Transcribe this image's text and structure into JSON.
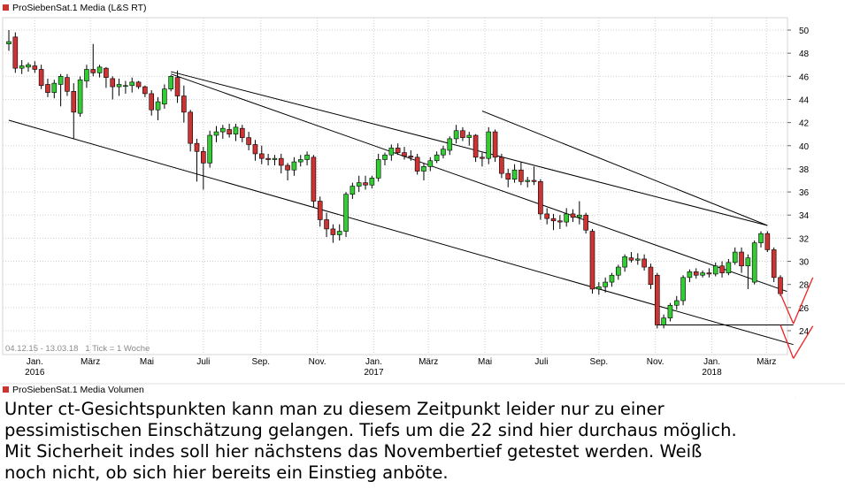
{
  "chart_data": {
    "type": "candlestick",
    "title": "ProSiebenSat.1 Media (L&S RT)",
    "volume_title": "ProSiebenSat.1 Media Volumen",
    "info": "04.12.15 - 13.03.18   1 Tick = 1 Woche",
    "ylim": [
      22.5,
      51
    ],
    "yticks": [
      24,
      26,
      28,
      30,
      32,
      34,
      36,
      38,
      40,
      42,
      44,
      46,
      48,
      50
    ],
    "x_ticks": [
      {
        "label": "Jan.",
        "sub": "2016",
        "date": "2016-01-01"
      },
      {
        "label": "März",
        "sub": "",
        "date": "2016-03-01"
      },
      {
        "label": "Mai",
        "sub": "",
        "date": "2016-05-01"
      },
      {
        "label": "Juli",
        "sub": "",
        "date": "2016-07-01"
      },
      {
        "label": "Sep.",
        "sub": "",
        "date": "2016-09-01"
      },
      {
        "label": "Nov.",
        "sub": "",
        "date": "2016-11-01"
      },
      {
        "label": "Jan.",
        "sub": "2017",
        "date": "2017-01-01"
      },
      {
        "label": "März",
        "sub": "",
        "date": "2017-03-01"
      },
      {
        "label": "Mai",
        "sub": "",
        "date": "2017-05-01"
      },
      {
        "label": "Juli",
        "sub": "",
        "date": "2017-07-01"
      },
      {
        "label": "Sep.",
        "sub": "",
        "date": "2017-09-01"
      },
      {
        "label": "Nov.",
        "sub": "",
        "date": "2017-11-01"
      },
      {
        "label": "Jan.",
        "sub": "2018",
        "date": "2018-01-01"
      },
      {
        "label": "März",
        "sub": "",
        "date": "2018-03-01"
      }
    ],
    "candles": [
      {
        "date": "2015-12-04",
        "o": 48.8,
        "h": 50.0,
        "l": 48.2,
        "c": 49.0
      },
      {
        "date": "2015-12-11",
        "o": 49.4,
        "h": 49.8,
        "l": 46.3,
        "c": 46.7
      },
      {
        "date": "2015-12-18",
        "o": 46.7,
        "h": 47.4,
        "l": 46.2,
        "c": 46.9
      },
      {
        "date": "2015-12-25",
        "o": 46.8,
        "h": 47.2,
        "l": 46.4,
        "c": 47.0
      },
      {
        "date": "2016-01-01",
        "o": 46.9,
        "h": 47.3,
        "l": 46.3,
        "c": 46.6
      },
      {
        "date": "2016-01-08",
        "o": 46.6,
        "h": 47.0,
        "l": 44.9,
        "c": 45.2
      },
      {
        "date": "2016-01-15",
        "o": 45.3,
        "h": 45.8,
        "l": 44.2,
        "c": 44.6
      },
      {
        "date": "2016-01-22",
        "o": 44.6,
        "h": 45.7,
        "l": 44.1,
        "c": 45.4
      },
      {
        "date": "2016-01-29",
        "o": 45.3,
        "h": 46.2,
        "l": 43.4,
        "c": 46.0
      },
      {
        "date": "2016-02-05",
        "o": 45.9,
        "h": 46.2,
        "l": 44.3,
        "c": 44.7
      },
      {
        "date": "2016-02-12",
        "o": 44.7,
        "h": 45.4,
        "l": 40.6,
        "c": 42.9
      },
      {
        "date": "2016-02-19",
        "o": 42.8,
        "h": 46.0,
        "l": 42.5,
        "c": 45.7
      },
      {
        "date": "2016-02-26",
        "o": 45.6,
        "h": 47.0,
        "l": 45.0,
        "c": 46.6
      },
      {
        "date": "2016-03-04",
        "o": 46.6,
        "h": 48.8,
        "l": 46.0,
        "c": 46.3
      },
      {
        "date": "2016-03-11",
        "o": 46.3,
        "h": 47.0,
        "l": 45.9,
        "c": 46.8
      },
      {
        "date": "2016-03-18",
        "o": 46.7,
        "h": 46.8,
        "l": 45.0,
        "c": 45.9
      },
      {
        "date": "2016-03-25",
        "o": 45.8,
        "h": 46.0,
        "l": 44.0,
        "c": 45.1
      },
      {
        "date": "2016-04-01",
        "o": 45.1,
        "h": 45.8,
        "l": 44.3,
        "c": 45.3
      },
      {
        "date": "2016-04-08",
        "o": 45.2,
        "h": 45.6,
        "l": 44.5,
        "c": 45.2
      },
      {
        "date": "2016-04-15",
        "o": 45.2,
        "h": 45.9,
        "l": 44.6,
        "c": 45.5
      },
      {
        "date": "2016-04-22",
        "o": 45.5,
        "h": 45.6,
        "l": 44.9,
        "c": 45.1
      },
      {
        "date": "2016-04-29",
        "o": 45.1,
        "h": 45.2,
        "l": 44.2,
        "c": 44.5
      },
      {
        "date": "2016-05-06",
        "o": 44.5,
        "h": 44.8,
        "l": 42.6,
        "c": 43.1
      },
      {
        "date": "2016-05-13",
        "o": 43.1,
        "h": 44.2,
        "l": 42.2,
        "c": 43.8
      },
      {
        "date": "2016-05-20",
        "o": 43.6,
        "h": 45.3,
        "l": 43.2,
        "c": 44.9
      },
      {
        "date": "2016-05-27",
        "o": 44.9,
        "h": 46.1,
        "l": 44.7,
        "c": 46.0
      },
      {
        "date": "2016-06-03",
        "o": 45.9,
        "h": 46.5,
        "l": 43.7,
        "c": 44.3
      },
      {
        "date": "2016-06-10",
        "o": 44.3,
        "h": 45.2,
        "l": 42.0,
        "c": 42.9
      },
      {
        "date": "2016-06-17",
        "o": 42.9,
        "h": 43.1,
        "l": 39.5,
        "c": 40.2
      },
      {
        "date": "2016-06-24",
        "o": 40.2,
        "h": 40.6,
        "l": 36.9,
        "c": 39.5
      },
      {
        "date": "2016-07-01",
        "o": 39.5,
        "h": 39.9,
        "l": 36.2,
        "c": 38.5
      },
      {
        "date": "2016-07-08",
        "o": 38.5,
        "h": 41.3,
        "l": 38.1,
        "c": 40.9
      },
      {
        "date": "2016-07-15",
        "o": 40.9,
        "h": 41.7,
        "l": 40.3,
        "c": 41.2
      },
      {
        "date": "2016-07-22",
        "o": 41.2,
        "h": 41.8,
        "l": 40.6,
        "c": 41.5
      },
      {
        "date": "2016-07-29",
        "o": 41.4,
        "h": 41.9,
        "l": 40.7,
        "c": 41.0
      },
      {
        "date": "2016-08-05",
        "o": 41.0,
        "h": 41.9,
        "l": 40.4,
        "c": 41.6
      },
      {
        "date": "2016-08-12",
        "o": 41.5,
        "h": 41.8,
        "l": 40.3,
        "c": 40.7
      },
      {
        "date": "2016-08-19",
        "o": 40.7,
        "h": 41.2,
        "l": 39.6,
        "c": 40.1
      },
      {
        "date": "2016-08-26",
        "o": 40.1,
        "h": 40.5,
        "l": 38.7,
        "c": 39.3
      },
      {
        "date": "2016-09-02",
        "o": 39.3,
        "h": 40.0,
        "l": 38.4,
        "c": 38.9
      },
      {
        "date": "2016-09-09",
        "o": 38.9,
        "h": 39.3,
        "l": 38.3,
        "c": 38.8
      },
      {
        "date": "2016-09-16",
        "o": 38.8,
        "h": 39.2,
        "l": 38.3,
        "c": 38.9
      },
      {
        "date": "2016-09-23",
        "o": 38.9,
        "h": 39.3,
        "l": 37.6,
        "c": 38.3
      },
      {
        "date": "2016-09-30",
        "o": 38.3,
        "h": 38.5,
        "l": 37.0,
        "c": 37.9
      },
      {
        "date": "2016-10-07",
        "o": 37.9,
        "h": 39.0,
        "l": 37.4,
        "c": 38.6
      },
      {
        "date": "2016-10-14",
        "o": 38.6,
        "h": 39.2,
        "l": 38.2,
        "c": 38.8
      },
      {
        "date": "2016-10-21",
        "o": 38.8,
        "h": 39.5,
        "l": 38.3,
        "c": 39.2
      },
      {
        "date": "2016-10-28",
        "o": 39.0,
        "h": 39.2,
        "l": 34.7,
        "c": 35.2
      },
      {
        "date": "2016-11-04",
        "o": 35.2,
        "h": 35.6,
        "l": 33.0,
        "c": 33.6
      },
      {
        "date": "2016-11-11",
        "o": 33.6,
        "h": 34.2,
        "l": 32.1,
        "c": 32.8
      },
      {
        "date": "2016-11-18",
        "o": 32.8,
        "h": 33.2,
        "l": 31.6,
        "c": 32.3
      },
      {
        "date": "2016-11-25",
        "o": 32.3,
        "h": 33.2,
        "l": 31.8,
        "c": 32.6
      },
      {
        "date": "2016-12-02",
        "o": 32.6,
        "h": 36.0,
        "l": 32.1,
        "c": 35.8
      },
      {
        "date": "2016-12-09",
        "o": 35.8,
        "h": 36.8,
        "l": 35.4,
        "c": 36.5
      },
      {
        "date": "2016-12-16",
        "o": 36.5,
        "h": 37.4,
        "l": 36.0,
        "c": 36.8
      },
      {
        "date": "2016-12-23",
        "o": 36.8,
        "h": 37.4,
        "l": 36.2,
        "c": 36.6
      },
      {
        "date": "2016-12-30",
        "o": 36.6,
        "h": 37.4,
        "l": 36.3,
        "c": 37.2
      },
      {
        "date": "2017-01-06",
        "o": 37.2,
        "h": 39.3,
        "l": 36.9,
        "c": 38.8
      },
      {
        "date": "2017-01-13",
        "o": 38.8,
        "h": 39.4,
        "l": 38.3,
        "c": 39.2
      },
      {
        "date": "2017-01-20",
        "o": 39.2,
        "h": 40.1,
        "l": 38.7,
        "c": 39.8
      },
      {
        "date": "2017-01-27",
        "o": 39.8,
        "h": 40.2,
        "l": 39.2,
        "c": 39.4
      },
      {
        "date": "2017-02-03",
        "o": 39.4,
        "h": 39.9,
        "l": 38.8,
        "c": 39.1
      },
      {
        "date": "2017-02-10",
        "o": 39.1,
        "h": 39.6,
        "l": 38.7,
        "c": 39.0
      },
      {
        "date": "2017-02-17",
        "o": 39.0,
        "h": 39.3,
        "l": 37.5,
        "c": 37.8
      },
      {
        "date": "2017-02-24",
        "o": 37.8,
        "h": 38.5,
        "l": 37.0,
        "c": 38.2
      },
      {
        "date": "2017-03-03",
        "o": 38.2,
        "h": 39.0,
        "l": 37.8,
        "c": 38.7
      },
      {
        "date": "2017-03-10",
        "o": 38.7,
        "h": 39.5,
        "l": 38.5,
        "c": 39.2
      },
      {
        "date": "2017-03-17",
        "o": 39.2,
        "h": 40.0,
        "l": 38.9,
        "c": 39.7
      },
      {
        "date": "2017-03-24",
        "o": 39.6,
        "h": 40.8,
        "l": 39.2,
        "c": 40.6
      },
      {
        "date": "2017-03-31",
        "o": 40.6,
        "h": 41.8,
        "l": 40.2,
        "c": 41.3
      },
      {
        "date": "2017-04-07",
        "o": 41.3,
        "h": 41.6,
        "l": 40.4,
        "c": 40.7
      },
      {
        "date": "2017-04-14",
        "o": 40.7,
        "h": 41.2,
        "l": 40.0,
        "c": 40.9
      },
      {
        "date": "2017-04-21",
        "o": 40.9,
        "h": 41.0,
        "l": 38.6,
        "c": 39.0
      },
      {
        "date": "2017-04-28",
        "o": 39.0,
        "h": 39.4,
        "l": 38.2,
        "c": 38.9
      },
      {
        "date": "2017-05-05",
        "o": 38.9,
        "h": 41.6,
        "l": 38.4,
        "c": 41.2
      },
      {
        "date": "2017-05-12",
        "o": 41.2,
        "h": 41.4,
        "l": 38.6,
        "c": 39.0
      },
      {
        "date": "2017-05-19",
        "o": 39.0,
        "h": 39.3,
        "l": 37.2,
        "c": 37.6
      },
      {
        "date": "2017-05-26",
        "o": 37.6,
        "h": 38.0,
        "l": 36.4,
        "c": 37.1
      },
      {
        "date": "2017-06-02",
        "o": 37.1,
        "h": 38.4,
        "l": 36.8,
        "c": 37.9
      },
      {
        "date": "2017-06-09",
        "o": 37.9,
        "h": 38.6,
        "l": 36.6,
        "c": 36.9
      },
      {
        "date": "2017-06-16",
        "o": 36.9,
        "h": 37.3,
        "l": 36.4,
        "c": 37.0
      },
      {
        "date": "2017-06-23",
        "o": 37.0,
        "h": 38.2,
        "l": 36.6,
        "c": 36.9
      },
      {
        "date": "2017-06-30",
        "o": 36.9,
        "h": 37.1,
        "l": 33.6,
        "c": 34.1
      },
      {
        "date": "2017-07-07",
        "o": 34.1,
        "h": 34.6,
        "l": 33.2,
        "c": 33.7
      },
      {
        "date": "2017-07-14",
        "o": 33.7,
        "h": 34.1,
        "l": 32.7,
        "c": 33.5
      },
      {
        "date": "2017-07-21",
        "o": 33.5,
        "h": 34.0,
        "l": 32.8,
        "c": 33.4
      },
      {
        "date": "2017-07-28",
        "o": 33.4,
        "h": 34.6,
        "l": 33.0,
        "c": 34.1
      },
      {
        "date": "2017-08-04",
        "o": 34.1,
        "h": 34.5,
        "l": 33.4,
        "c": 33.8
      },
      {
        "date": "2017-08-11",
        "o": 33.8,
        "h": 35.2,
        "l": 33.2,
        "c": 34.0
      },
      {
        "date": "2017-08-18",
        "o": 34.0,
        "h": 34.2,
        "l": 32.4,
        "c": 32.7
      },
      {
        "date": "2017-08-25",
        "o": 32.6,
        "h": 32.8,
        "l": 27.2,
        "c": 27.6
      },
      {
        "date": "2017-09-01",
        "o": 27.6,
        "h": 28.2,
        "l": 27.1,
        "c": 27.8
      },
      {
        "date": "2017-09-08",
        "o": 27.8,
        "h": 28.6,
        "l": 27.3,
        "c": 28.2
      },
      {
        "date": "2017-09-15",
        "o": 28.2,
        "h": 29.0,
        "l": 27.8,
        "c": 28.8
      },
      {
        "date": "2017-09-22",
        "o": 28.8,
        "h": 29.7,
        "l": 28.4,
        "c": 29.5
      },
      {
        "date": "2017-09-29",
        "o": 29.5,
        "h": 30.6,
        "l": 29.1,
        "c": 30.4
      },
      {
        "date": "2017-10-06",
        "o": 30.3,
        "h": 30.8,
        "l": 29.9,
        "c": 30.1
      },
      {
        "date": "2017-10-13",
        "o": 30.1,
        "h": 30.7,
        "l": 29.7,
        "c": 30.2
      },
      {
        "date": "2017-10-20",
        "o": 30.2,
        "h": 30.6,
        "l": 29.2,
        "c": 29.5
      },
      {
        "date": "2017-10-27",
        "o": 29.5,
        "h": 29.8,
        "l": 27.6,
        "c": 28.0
      },
      {
        "date": "2017-11-03",
        "o": 28.8,
        "h": 29.0,
        "l": 24.2,
        "c": 24.5
      },
      {
        "date": "2017-11-10",
        "o": 24.5,
        "h": 25.4,
        "l": 24.2,
        "c": 25.1
      },
      {
        "date": "2017-11-17",
        "o": 25.1,
        "h": 26.4,
        "l": 24.8,
        "c": 26.2
      },
      {
        "date": "2017-11-24",
        "o": 26.2,
        "h": 27.0,
        "l": 25.8,
        "c": 26.6
      },
      {
        "date": "2017-12-01",
        "o": 26.6,
        "h": 28.8,
        "l": 26.2,
        "c": 28.6
      },
      {
        "date": "2017-12-08",
        "o": 28.6,
        "h": 29.3,
        "l": 28.2,
        "c": 29.1
      },
      {
        "date": "2017-12-15",
        "o": 29.1,
        "h": 29.4,
        "l": 28.5,
        "c": 28.8
      },
      {
        "date": "2017-12-22",
        "o": 28.8,
        "h": 29.2,
        "l": 28.6,
        "c": 29.0
      },
      {
        "date": "2017-12-29",
        "o": 29.0,
        "h": 29.4,
        "l": 28.6,
        "c": 28.9
      },
      {
        "date": "2018-01-05",
        "o": 28.9,
        "h": 29.9,
        "l": 28.7,
        "c": 29.6
      },
      {
        "date": "2018-01-12",
        "o": 29.6,
        "h": 30.0,
        "l": 28.6,
        "c": 29.0
      },
      {
        "date": "2018-01-19",
        "o": 29.0,
        "h": 30.2,
        "l": 28.8,
        "c": 29.9
      },
      {
        "date": "2018-01-26",
        "o": 29.9,
        "h": 31.2,
        "l": 29.7,
        "c": 30.8
      },
      {
        "date": "2018-02-02",
        "o": 30.8,
        "h": 31.2,
        "l": 29.0,
        "c": 29.6
      },
      {
        "date": "2018-02-09",
        "o": 29.6,
        "h": 30.6,
        "l": 27.6,
        "c": 30.3
      },
      {
        "date": "2018-02-16",
        "o": 28.2,
        "h": 31.8,
        "l": 28.0,
        "c": 31.6
      },
      {
        "date": "2018-02-23",
        "o": 31.6,
        "h": 32.6,
        "l": 31.2,
        "c": 32.4
      },
      {
        "date": "2018-03-02",
        "o": 32.4,
        "h": 32.6,
        "l": 30.8,
        "c": 31.0
      },
      {
        "date": "2018-03-09",
        "o": 31.0,
        "h": 31.2,
        "l": 28.2,
        "c": 28.6
      },
      {
        "date": "2018-03-16",
        "o": 28.6,
        "h": 28.8,
        "l": 27.0,
        "c": 27.2
      }
    ],
    "trend_lines": [
      {
        "x1": "2015-12-04",
        "y1": 42.2,
        "x2": "2018-03-30",
        "y2": 22.8
      },
      {
        "x1": "2016-05-27",
        "y1": 46.4,
        "x2": "2018-03-02",
        "y2": 33.1
      },
      {
        "x1": "2017-04-28",
        "y1": 43.0,
        "x2": "2018-03-02",
        "y2": 33.1
      },
      {
        "x1": "2016-05-27",
        "y1": 46.2,
        "x2": "2018-03-23",
        "y2": 27.4
      },
      {
        "x1": "2017-11-03",
        "y1": 24.5,
        "x2": "2018-03-30",
        "y2": 24.5
      }
    ],
    "forecast_lines": [
      {
        "x1": "2018-03-16",
        "y1": 27.2,
        "x2": "2018-03-30",
        "y2": 24.6
      },
      {
        "x1": "2018-03-30",
        "y1": 24.6,
        "x2": "2018-04-20",
        "y2": 28.6
      },
      {
        "x1": "2018-03-16",
        "y1": 24.5,
        "x2": "2018-03-30",
        "y2": 21.6
      },
      {
        "x1": "2018-03-30",
        "y1": 21.6,
        "x2": "2018-04-20",
        "y2": 24.4
      }
    ],
    "colors": {
      "up": "#33cc33",
      "down": "#cc3333",
      "line": "#000000",
      "forecast": "#ee2222",
      "grid": "#cfcfcf",
      "legend_marker": "#cc3333"
    }
  },
  "caption": [
    "Unter ct-Gesichtspunkten kann man zu diesem Zeitpunkt leider nur zu einer",
    "pessimistischen Einschätzung gelangen. Tiefs um die 22 sind hier durchaus möglich.",
    "Mit Sicherheit indes soll hier nächstens das Novembertief getestet werden. Weiß",
    "noch nicht, ob sich hier bereits ein Einstieg anböte."
  ]
}
